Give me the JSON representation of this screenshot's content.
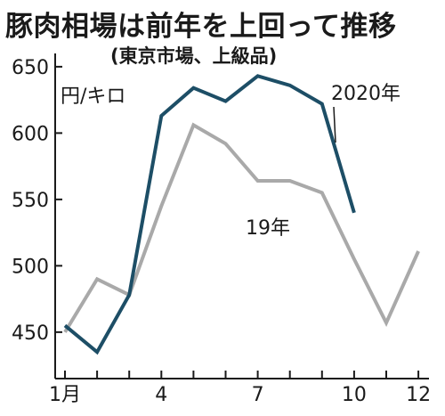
{
  "chart_data": {
    "type": "line",
    "title": "豚肉相場は前年を上回って推移",
    "subtitle": "(東京市場、上級品)",
    "unit": "円/キロ",
    "xlabel": "",
    "ylabel": "",
    "x": [
      1,
      2,
      3,
      4,
      5,
      6,
      7,
      8,
      9,
      10,
      11,
      12
    ],
    "x_tick_values": [
      1,
      4,
      7,
      10,
      12
    ],
    "x_tick_labels": [
      "1月",
      "4",
      "7",
      "10",
      "12"
    ],
    "ylim": [
      415,
      660
    ],
    "y_ticks": [
      450,
      500,
      550,
      600,
      650
    ],
    "grid": false,
    "series": [
      {
        "name": "2020年",
        "color": "#1d4e66",
        "values": [
          455,
          435,
          478,
          613,
          634,
          624,
          643,
          636,
          622,
          540,
          null,
          null
        ]
      },
      {
        "name": "19年",
        "color": "#a9a9a9",
        "values": [
          450,
          490,
          478,
          545,
          606,
          592,
          564,
          564,
          555,
          505,
          457,
          511
        ]
      }
    ]
  }
}
